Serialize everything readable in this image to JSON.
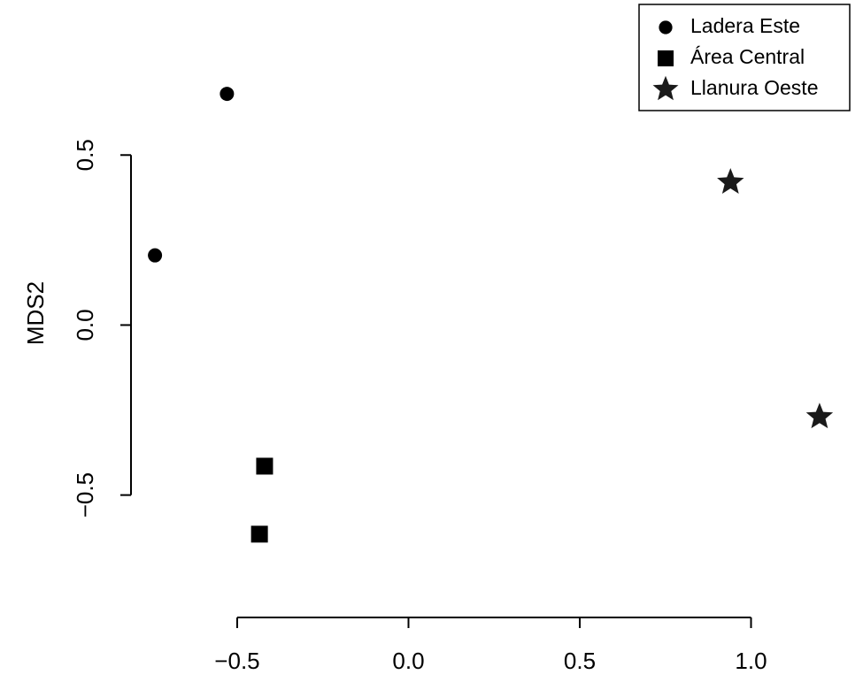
{
  "chart_data": {
    "type": "scatter",
    "xlabel": "",
    "ylabel": "MDS2",
    "xlim": [
      -0.81,
      1.27
    ],
    "ylim": [
      -0.86,
      0.93
    ],
    "x_ticks": [
      -0.5,
      0.0,
      0.5,
      1.0
    ],
    "x_tick_labels": [
      "−0.5",
      "0.0",
      "0.5",
      "1.0"
    ],
    "y_ticks": [
      -0.5,
      0.0,
      0.5
    ],
    "y_tick_labels": [
      "−0.5",
      "0.0",
      "0.5"
    ],
    "grid": false,
    "legend_position": "top-right",
    "series": [
      {
        "name": "Ladera Este",
        "marker": "circle",
        "color": "#000000",
        "points": [
          {
            "x": -0.53,
            "y": 0.68
          },
          {
            "x": -0.74,
            "y": 0.205
          }
        ]
      },
      {
        "name": "Área Central",
        "marker": "square",
        "color": "#000000",
        "points": [
          {
            "x": -0.42,
            "y": -0.415
          },
          {
            "x": -0.435,
            "y": -0.615
          }
        ]
      },
      {
        "name": "Llanura Oeste",
        "marker": "star",
        "color": "#1a1a1a",
        "points": [
          {
            "x": 0.94,
            "y": 0.42
          },
          {
            "x": 1.2,
            "y": -0.27
          }
        ]
      }
    ]
  }
}
